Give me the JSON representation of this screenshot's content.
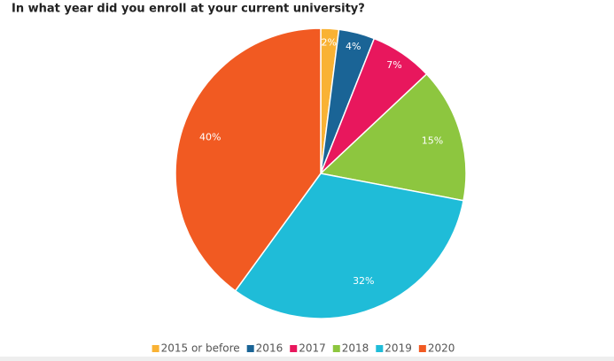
{
  "chart_data": {
    "type": "pie",
    "title": "In what year did you enroll at your current university?",
    "categories": [
      "2015 or before",
      "2016",
      "2017",
      "2018",
      "2019",
      "2020"
    ],
    "values": [
      2,
      4,
      7,
      15,
      32,
      40
    ],
    "value_labels": [
      "2%",
      "4%",
      "7%",
      "15%",
      "32%",
      "40%"
    ],
    "colors": [
      "#f9b234",
      "#1a6496",
      "#e8175d",
      "#8dc63f",
      "#1fbcd8",
      "#f15a22"
    ],
    "legend": "bottom"
  }
}
